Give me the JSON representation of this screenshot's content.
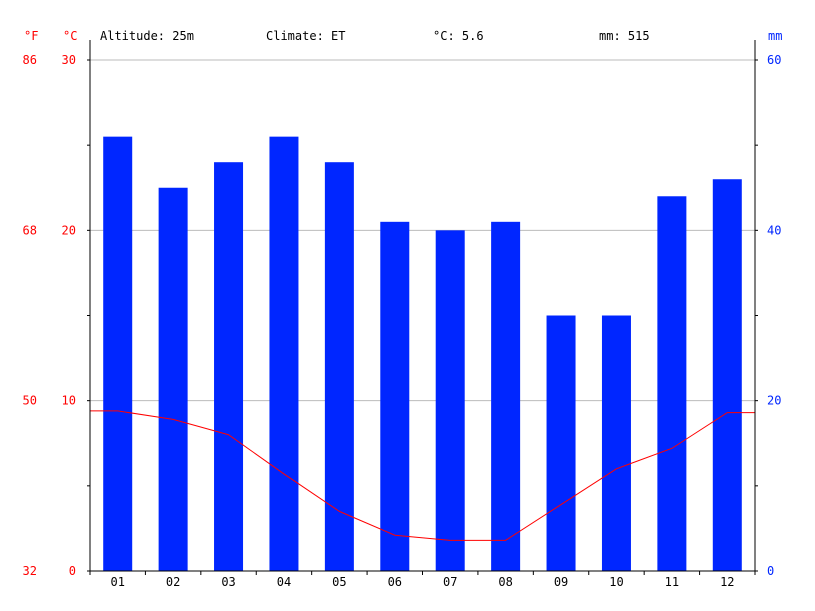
{
  "header": {
    "altitude": "Altitude: 25m",
    "climate": "Climate: ET",
    "temp": "°C: 5.6",
    "precip": "mm: 515"
  },
  "axes": {
    "left_unit_f": "°F",
    "left_unit_c": "°C",
    "right_unit": "mm"
  },
  "colors": {
    "precip": "#0026ff",
    "temp": "#ff0000",
    "right_axis": "#0026ff",
    "left_axis": "#ff0000",
    "grid": "#bbbbbb"
  },
  "chart_data": {
    "type": "bar",
    "categories": [
      "01",
      "02",
      "03",
      "04",
      "05",
      "06",
      "07",
      "08",
      "09",
      "10",
      "11",
      "12"
    ],
    "series": [
      {
        "type": "bar",
        "axis": "right",
        "values": [
          51,
          45,
          48,
          51,
          48,
          41,
          40,
          41,
          30,
          30,
          44,
          46
        ]
      },
      {
        "type": "line",
        "axis": "left",
        "values": [
          9.4,
          8.9,
          8.0,
          5.7,
          3.5,
          2.1,
          1.8,
          1.8,
          3.9,
          6.0,
          7.2,
          9.3
        ]
      }
    ],
    "left_ticks_c": [
      "0",
      "10",
      "20",
      "30"
    ],
    "left_ticks_f": [
      "32",
      "50",
      "68",
      "86"
    ],
    "right_ticks": [
      "0",
      "20",
      "40",
      "60"
    ],
    "ylim_c": [
      0,
      30
    ],
    "ylim_mm": [
      0,
      60
    ],
    "grid": true
  }
}
